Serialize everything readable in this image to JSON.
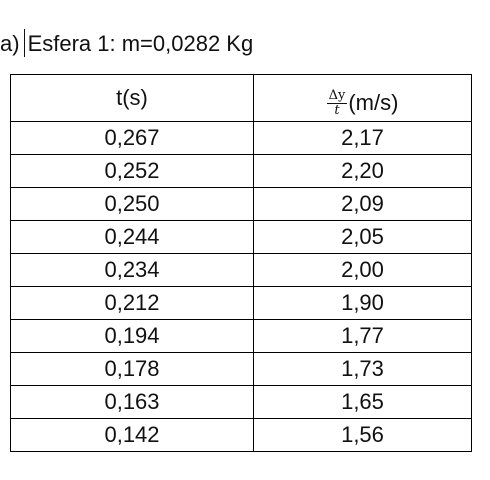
{
  "heading": {
    "prefix": "a)",
    "text": "Esfera 1: m=0,0282 Kg"
  },
  "table": {
    "columns": {
      "t": "t(s)",
      "ratio_numerator": "Δy",
      "ratio_denominator": "t",
      "ratio_unit": "(m/s)"
    },
    "rows": [
      {
        "t": "0,267",
        "v": "2,17"
      },
      {
        "t": "0,252",
        "v": "2,20"
      },
      {
        "t": "0,250",
        "v": "2,09"
      },
      {
        "t": "0,244",
        "v": "2,05"
      },
      {
        "t": "0,234",
        "v": "2,00"
      },
      {
        "t": "0,212",
        "v": "1,90"
      },
      {
        "t": "0,194",
        "v": "1,77"
      },
      {
        "t": "0,178",
        "v": "1,73"
      },
      {
        "t": "0,163",
        "v": "1,65"
      },
      {
        "t": "0,142",
        "v": "1,56"
      }
    ]
  }
}
